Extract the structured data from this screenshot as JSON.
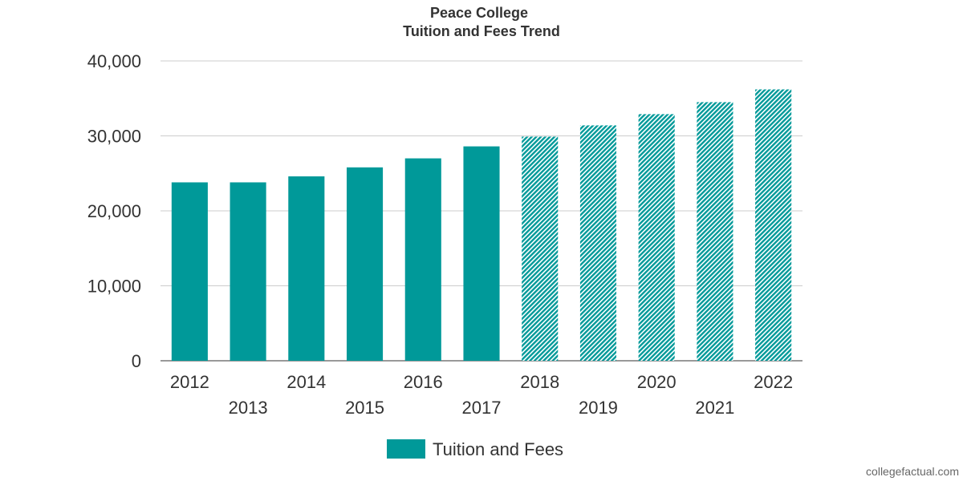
{
  "chart_data": {
    "type": "bar",
    "title": "Peace College",
    "subtitle": "Tuition and Fees Trend",
    "xlabel": "",
    "ylabel": "",
    "categories": [
      "2012",
      "2013",
      "2014",
      "2015",
      "2016",
      "2017",
      "2018",
      "2019",
      "2020",
      "2021",
      "2022"
    ],
    "series": [
      {
        "name": "Tuition and Fees",
        "values": [
          23800,
          23800,
          24600,
          25800,
          27000,
          28600,
          29900,
          31400,
          32900,
          34500,
          36200
        ]
      }
    ],
    "projected_from_index": 6,
    "ylim": [
      0,
      40000
    ],
    "yticks": [
      0,
      10000,
      20000,
      30000,
      40000
    ],
    "ytick_labels": [
      "0",
      "10,000",
      "20,000",
      "30,000",
      "40,000"
    ],
    "grid": true,
    "legend": "bottom-center",
    "bar_color": "#009999"
  },
  "credit": "collegefactual.com"
}
